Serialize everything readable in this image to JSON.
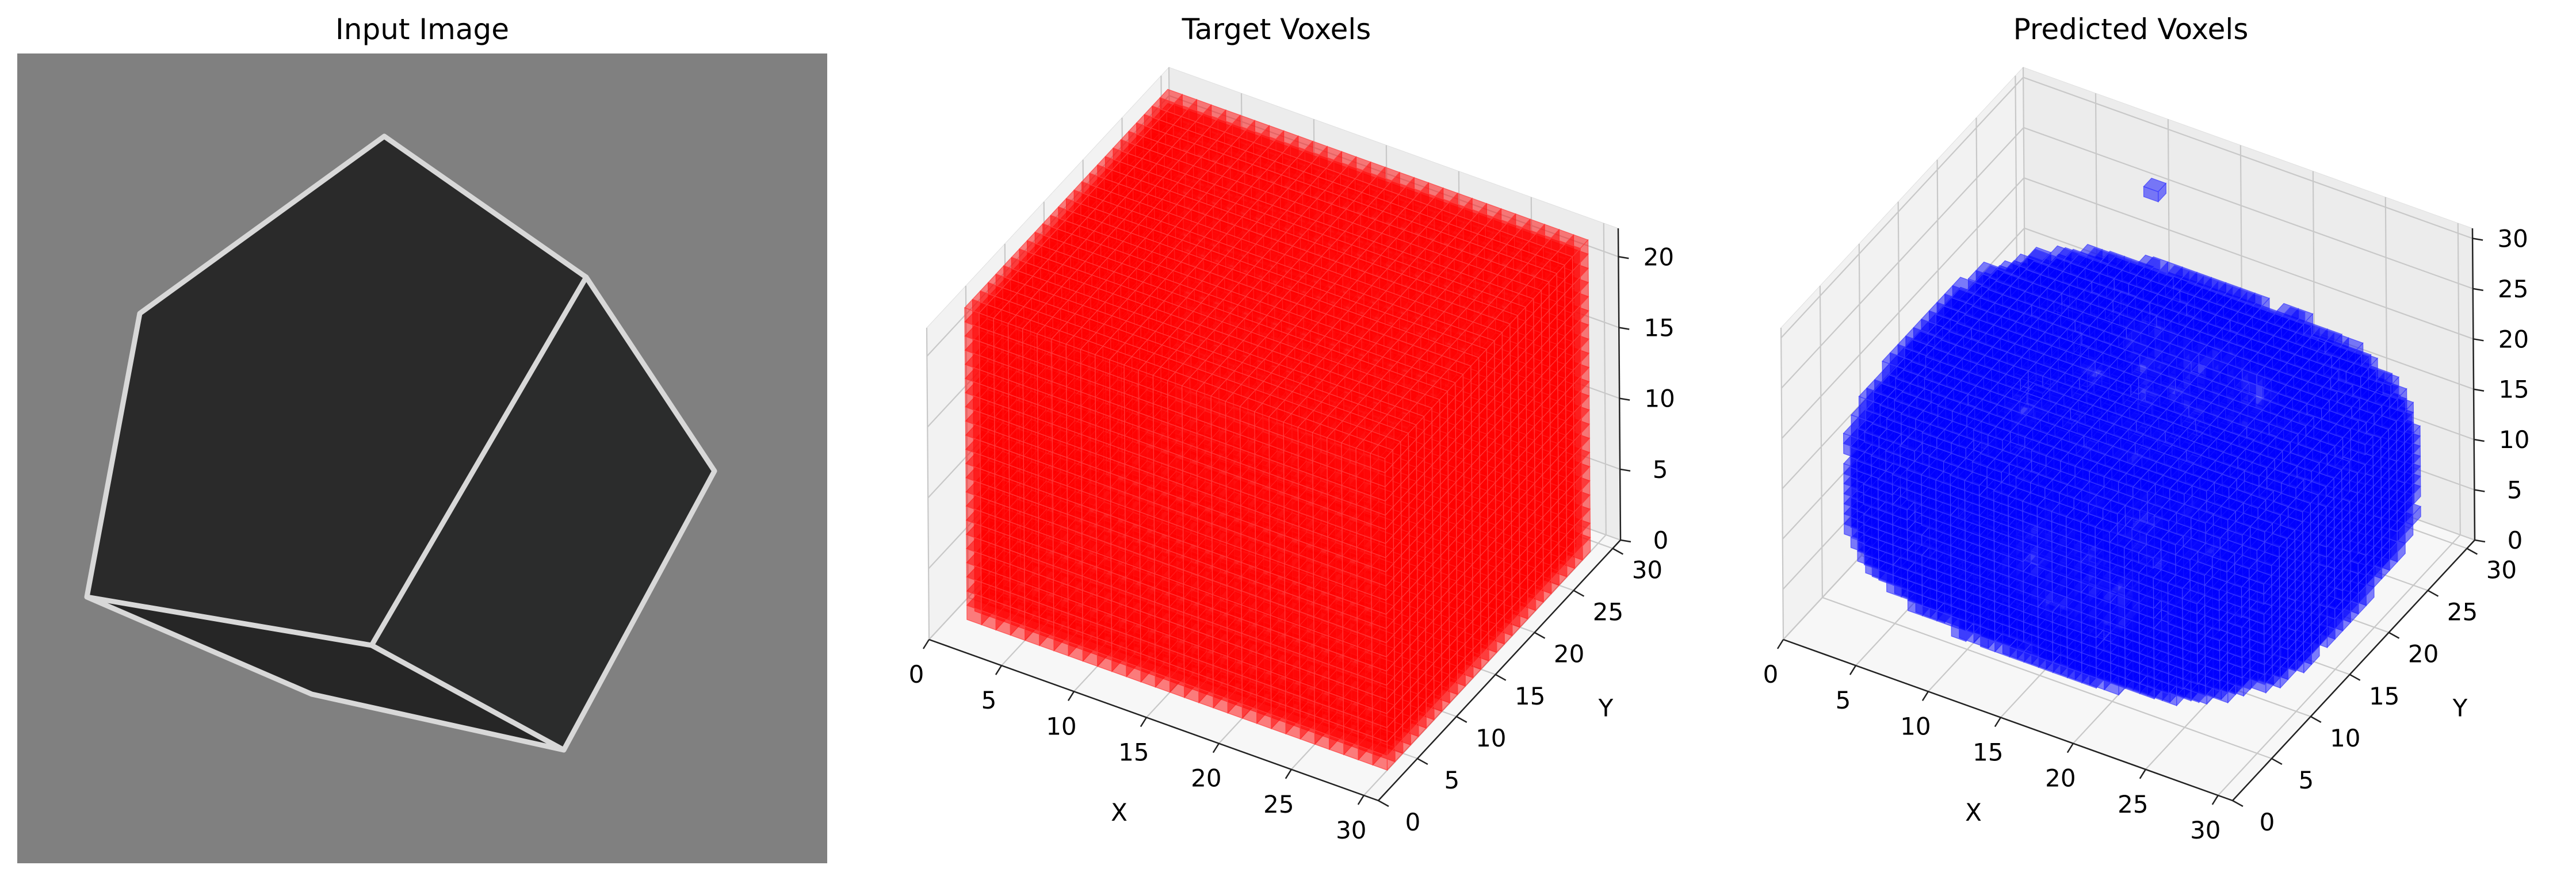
{
  "chart_data": [
    {
      "type": "image",
      "title": "Input Image",
      "background_color": "#808080",
      "face_colors": [
        "#2a2a2a",
        "#2b2c2c",
        "#262626"
      ],
      "edge_color": "#d8d8d8"
    },
    {
      "type": "voxel3d",
      "title": "Target Voxels",
      "color": "#ff0000",
      "edge_color": "#ff4040",
      "xlabel": "X",
      "ylabel": "Y",
      "zlabel": "",
      "xticks": [
        "0",
        "5",
        "10",
        "15",
        "20",
        "25",
        "30"
      ],
      "yticks": [
        "0",
        "5",
        "10",
        "15",
        "20",
        "25",
        "30"
      ],
      "zticks": [
        "0",
        "5",
        "10",
        "15",
        "20"
      ],
      "xlim": [
        0,
        31
      ],
      "ylim": [
        0,
        31
      ],
      "zlim": [
        0,
        22
      ],
      "shape": "box",
      "extent": {
        "x": [
          1,
          29
        ],
        "y": [
          3,
          28
        ],
        "z": [
          0,
          21
        ]
      }
    },
    {
      "type": "voxel3d",
      "title": "Predicted Voxels",
      "color": "#0000ff",
      "edge_color": "#4040ff",
      "xlabel": "X",
      "ylabel": "Y",
      "zlabel": "",
      "xticks": [
        "0",
        "5",
        "10",
        "15",
        "20",
        "25",
        "30"
      ],
      "yticks": [
        "0",
        "5",
        "10",
        "15",
        "20",
        "25",
        "30"
      ],
      "zticks": [
        "0",
        "5",
        "10",
        "15",
        "20",
        "25",
        "30"
      ],
      "xlim": [
        0,
        31
      ],
      "ylim": [
        0,
        31
      ],
      "zlim": [
        0,
        31
      ],
      "shape": "rounded-box",
      "extent": {
        "x": [
          1,
          29
        ],
        "y": [
          3,
          28
        ],
        "z": [
          1,
          20
        ]
      },
      "outliers": [
        {
          "x": 11,
          "y": 26,
          "z": 28
        }
      ]
    }
  ]
}
